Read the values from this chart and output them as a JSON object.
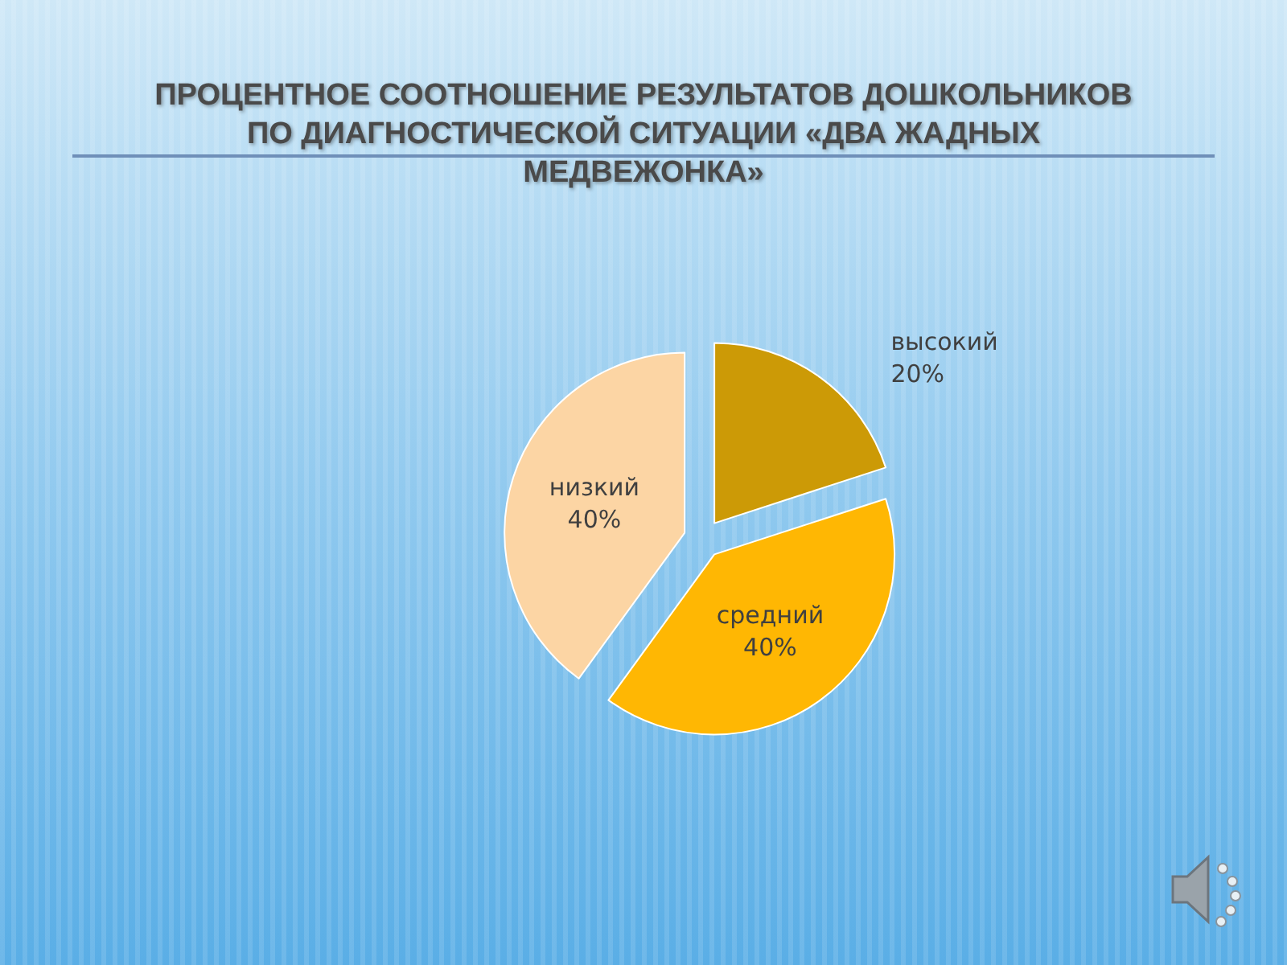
{
  "chart_data": {
    "type": "pie",
    "title": "ПРОЦЕНТНОЕ СООТНОШЕНИЕ РЕЗУЛЬТАТОВ ДОШКОЛЬНИКОВ ПО ДИАГНОСТИЧЕСКОЙ СИТУАЦИИ «ДВА ЖАДНЫХ МЕДВЕЖОНКА»",
    "categories": [
      "высокий",
      "средний",
      "низкий"
    ],
    "values": [
      20,
      40,
      40
    ],
    "colors": [
      "#cc9a06",
      "#ffb703",
      "#fcd5a4"
    ],
    "value_labels": [
      "20%",
      "40%",
      "40%"
    ],
    "legend": false
  }
}
